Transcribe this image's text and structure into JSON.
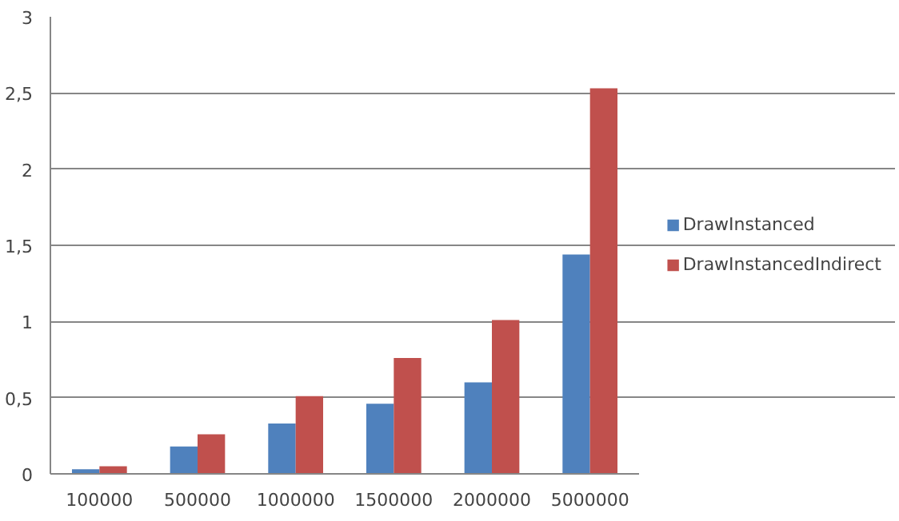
{
  "chart_data": {
    "type": "bar",
    "categories": [
      "100000",
      "500000",
      "1000000",
      "1500000",
      "2000000",
      "5000000"
    ],
    "series": [
      {
        "name": "DrawInstanced",
        "color": "#4f81bd",
        "values": [
          0.03,
          0.18,
          0.33,
          0.46,
          0.6,
          1.44
        ]
      },
      {
        "name": "DrawInstancedIndirect",
        "color": "#c0504d",
        "values": [
          0.05,
          0.26,
          0.51,
          0.76,
          1.01,
          2.53
        ]
      }
    ],
    "ylim": [
      0,
      3
    ],
    "yticks": [
      0,
      {
        "value": 0.5,
        "label": "0,5"
      },
      1,
      {
        "value": 1.5,
        "label": "1,5"
      },
      2,
      {
        "value": 2.5,
        "label": "2,5"
      },
      3
    ],
    "grid": "y",
    "legend": "right"
  }
}
